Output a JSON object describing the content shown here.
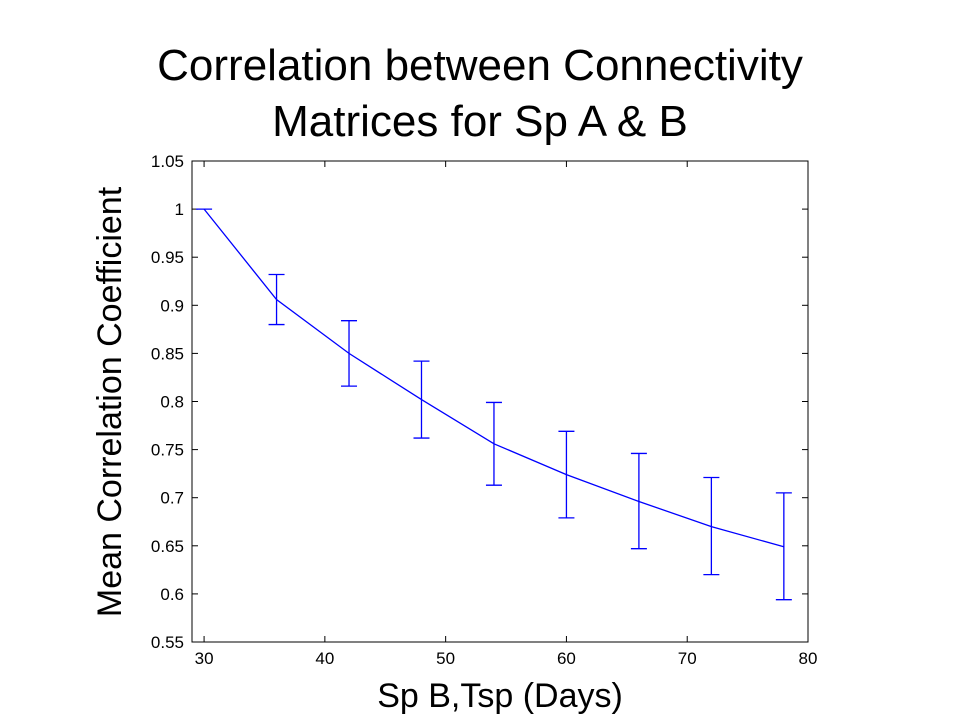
{
  "slide": {
    "title_line1": "Correlation between Connectivity",
    "title_line2": "Matrices for Sp A & B"
  },
  "chart_data": {
    "type": "line",
    "title": "Correlation between Connectivity Matrices for Sp A & B",
    "xlabel": "Sp B,Tsp (Days)",
    "ylabel": "Mean Correlation Coefficient",
    "xlim": [
      29,
      80
    ],
    "ylim": [
      0.55,
      1.05
    ],
    "xticks": [
      30,
      40,
      50,
      60,
      70,
      80
    ],
    "yticks": [
      0.55,
      0.6,
      0.65,
      0.7,
      0.75,
      0.8,
      0.85,
      0.9,
      0.95,
      1,
      1.05
    ],
    "xtick_labels": [
      "30",
      "40",
      "50",
      "60",
      "70",
      "80"
    ],
    "ytick_labels": [
      "0.55",
      "0.6",
      "0.65",
      "0.7",
      "0.75",
      "0.8",
      "0.85",
      "0.9",
      "0.95",
      "1",
      "1.05"
    ],
    "grid": false,
    "line_color": "#0000ff",
    "x": [
      30,
      36,
      42,
      48,
      54,
      60,
      66,
      72,
      78
    ],
    "y": [
      1.0,
      0.906,
      0.85,
      0.802,
      0.756,
      0.724,
      0.696,
      0.67,
      0.649
    ],
    "err_low": [
      1.0,
      0.88,
      0.816,
      0.762,
      0.713,
      0.679,
      0.647,
      0.62,
      0.594
    ],
    "err_high": [
      1.0,
      0.932,
      0.884,
      0.842,
      0.799,
      0.769,
      0.746,
      0.721,
      0.705
    ]
  }
}
